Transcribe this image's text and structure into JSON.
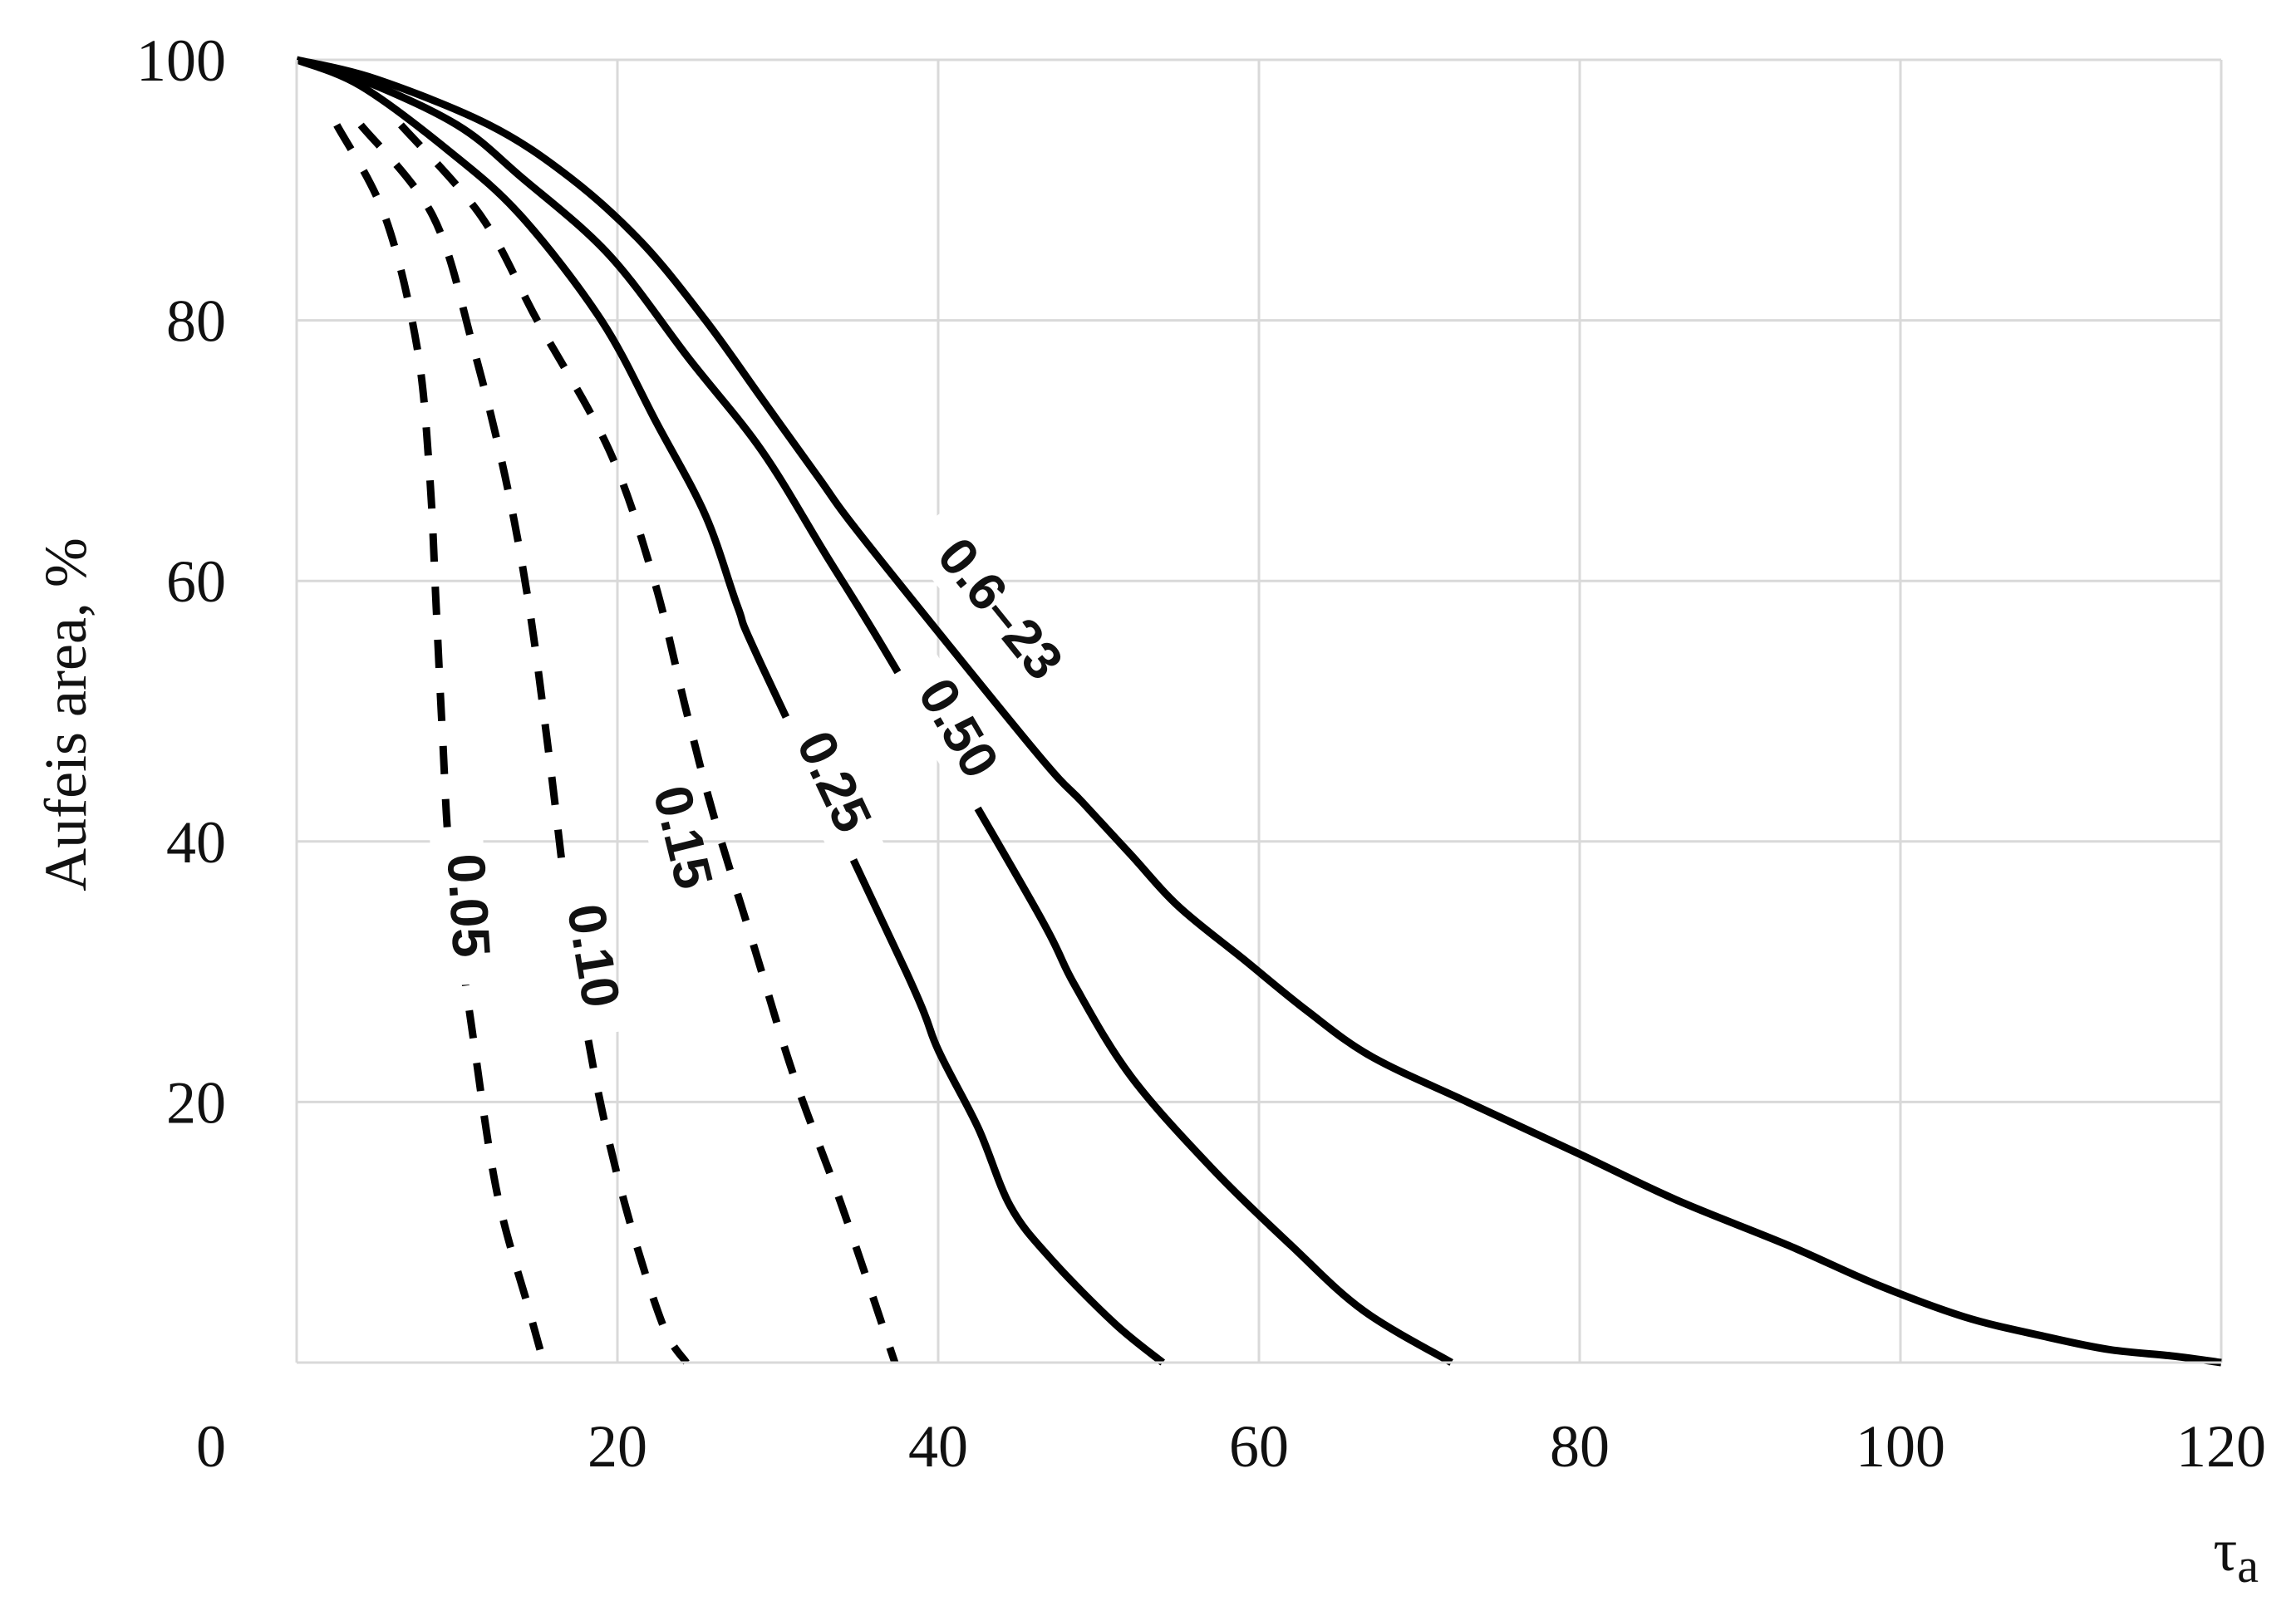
{
  "chart_data": {
    "type": "line",
    "title": "",
    "xlabel": "τ",
    "xlabel_subscript": "a",
    "ylabel": "Aufeis area,  %",
    "xlim": [
      0,
      120
    ],
    "ylim": [
      0,
      100
    ],
    "x_ticks": [
      20,
      40,
      60,
      80,
      100,
      120
    ],
    "y_ticks": [
      20,
      40,
      60,
      80,
      100
    ],
    "origin_label": "0",
    "grid": true,
    "legend": "none",
    "series": [
      {
        "name": "0.05",
        "style": "dashed",
        "points": [
          [
            2.5,
            95
          ],
          [
            5.5,
            88
          ],
          [
            7.5,
            78
          ],
          [
            8.3,
            68
          ],
          [
            8.7,
            58
          ],
          [
            9.1,
            48
          ],
          [
            9.6,
            38
          ],
          [
            11,
            25
          ],
          [
            12.5,
            13
          ],
          [
            14.5,
            4
          ],
          [
            15.4,
            0
          ]
        ]
      },
      {
        "name": "0.10",
        "style": "dashed",
        "points": [
          [
            4,
            95
          ],
          [
            8.5,
            88
          ],
          [
            11,
            78
          ],
          [
            13,
            68
          ],
          [
            14.5,
            58
          ],
          [
            15.8,
            46
          ],
          [
            17,
            34
          ],
          [
            18.6,
            22
          ],
          [
            20.5,
            12
          ],
          [
            22.8,
            3
          ],
          [
            24.3,
            0
          ]
        ]
      },
      {
        "name": "0.15",
        "style": "dashed",
        "points": [
          [
            6.5,
            95
          ],
          [
            11.5,
            88
          ],
          [
            15,
            80
          ],
          [
            19.5,
            70
          ],
          [
            22.3,
            60
          ],
          [
            24.3,
            50
          ],
          [
            26,
            42
          ],
          [
            28.5,
            32
          ],
          [
            31,
            22
          ],
          [
            34,
            12
          ],
          [
            37.3,
            0
          ]
        ]
      },
      {
        "name": "0.25",
        "style": "solid",
        "points": [
          [
            0,
            100
          ],
          [
            4,
            98
          ],
          [
            9.5,
            93
          ],
          [
            14,
            88
          ],
          [
            19,
            80
          ],
          [
            22.5,
            72
          ],
          [
            25.5,
            65
          ],
          [
            27.5,
            58
          ],
          [
            29,
            53.5
          ],
          [
            38,
            30
          ],
          [
            40,
            24
          ],
          [
            42.5,
            18
          ],
          [
            44.5,
            12
          ],
          [
            47,
            8
          ],
          [
            51,
            3
          ],
          [
            54,
            0
          ]
        ]
      },
      {
        "name": "0.50",
        "style": "solid",
        "points": [
          [
            0,
            100
          ],
          [
            4,
            98.5
          ],
          [
            10,
            95
          ],
          [
            14,
            91
          ],
          [
            19.5,
            85
          ],
          [
            24.5,
            77
          ],
          [
            29,
            70
          ],
          [
            33,
            62
          ],
          [
            37,
            54
          ],
          [
            46,
            35
          ],
          [
            48.5,
            29
          ],
          [
            52,
            22
          ],
          [
            57,
            15
          ],
          [
            62,
            9
          ],
          [
            66.5,
            4
          ],
          [
            72,
            0
          ]
        ]
      },
      {
        "name": "0.6–23",
        "style": "solid",
        "points": [
          [
            0,
            100
          ],
          [
            5,
            98.5
          ],
          [
            12,
            95
          ],
          [
            17,
            91
          ],
          [
            21.5,
            86
          ],
          [
            25.5,
            80
          ],
          [
            29,
            74
          ],
          [
            32.5,
            68
          ],
          [
            35.5,
            63
          ],
          [
            46,
            47
          ],
          [
            49,
            43
          ],
          [
            52,
            39
          ],
          [
            55,
            35
          ],
          [
            59,
            31
          ],
          [
            63,
            27
          ],
          [
            67,
            23.5
          ],
          [
            73,
            20
          ],
          [
            80,
            16
          ],
          [
            86,
            12.5
          ],
          [
            93,
            9
          ],
          [
            98.5,
            6
          ],
          [
            104,
            3.5
          ],
          [
            109,
            2
          ],
          [
            113,
            1
          ],
          [
            117,
            0.5
          ],
          [
            120,
            0
          ]
        ]
      }
    ],
    "labels": [
      {
        "text": "0.05",
        "x": 9.6,
        "y": 35
      },
      {
        "text": "0.10",
        "x": 17.4,
        "y": 31
      },
      {
        "text": "0.15",
        "x": 23,
        "y": 40
      },
      {
        "text": "0.25",
        "x": 32.5,
        "y": 44
      },
      {
        "text": "0.50",
        "x": 40.3,
        "y": 48
      },
      {
        "text": "0.6–23",
        "x": 43,
        "y": 57
      }
    ]
  }
}
